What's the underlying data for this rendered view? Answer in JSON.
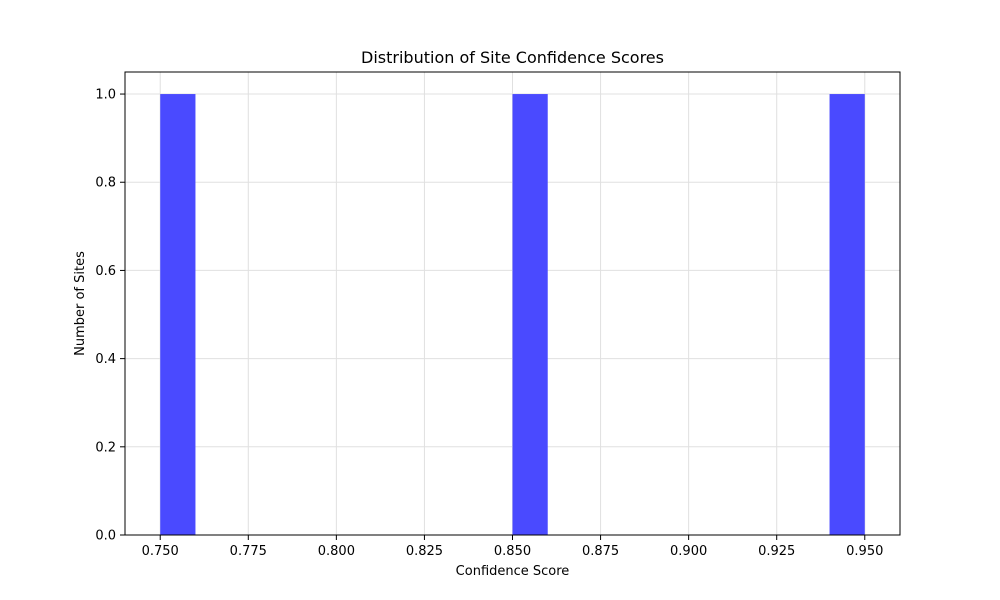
{
  "chart_data": {
    "type": "bar",
    "title": "Distribution of Site Confidence Scores",
    "xlabel": "Confidence Score",
    "ylabel": "Number of Sites",
    "bins": [
      {
        "x0": 0.75,
        "x1": 0.76,
        "count": 1
      },
      {
        "x0": 0.84,
        "x1": 0.85,
        "count": 0
      },
      {
        "x0": 0.85,
        "x1": 0.86,
        "count": 1
      },
      {
        "x0": 0.94,
        "x1": 0.95,
        "count": 1
      }
    ],
    "xlim": [
      0.74,
      0.96
    ],
    "ylim": [
      0,
      1.05
    ],
    "xticks": [
      0.75,
      0.775,
      0.8,
      0.825,
      0.85,
      0.875,
      0.9,
      0.925,
      0.95
    ],
    "xtick_labels": [
      "0.750",
      "0.775",
      "0.800",
      "0.825",
      "0.850",
      "0.875",
      "0.900",
      "0.925",
      "0.950"
    ],
    "yticks": [
      0.0,
      0.2,
      0.4,
      0.6,
      0.8,
      1.0
    ],
    "ytick_labels": [
      "0.0",
      "0.2",
      "0.4",
      "0.6",
      "0.8",
      "1.0"
    ],
    "grid": true,
    "bar_color": "#4a4aff",
    "grid_color": "#e0e0e0"
  }
}
